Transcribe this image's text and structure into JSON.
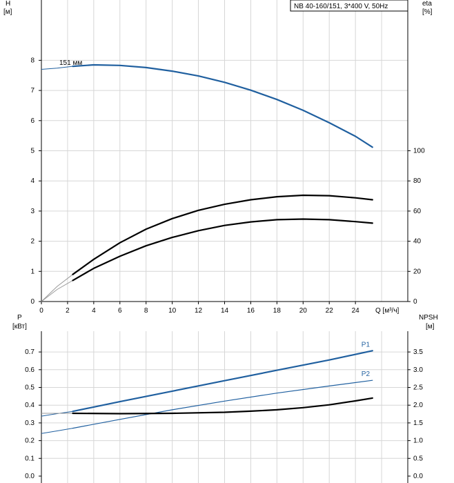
{
  "chart_data": [
    {
      "type": "line",
      "title": "NB 40-160/151, 3*400 V, 50Hz",
      "xlabel": "Q [м³/ч]",
      "x_ticks": [
        "0",
        "2",
        "4",
        "6",
        "8",
        "10",
        "12",
        "14",
        "16",
        "18",
        "20",
        "22",
        "24"
      ],
      "xlim": [
        0,
        28
      ],
      "left_axis": {
        "label_line1": "H",
        "label_line2": "[м]",
        "ylim": [
          0,
          10
        ],
        "ticks": [
          "0",
          "1",
          "2",
          "3",
          "4",
          "5",
          "6",
          "7",
          "8"
        ]
      },
      "right_axis": {
        "label_line1": "eta",
        "label_line2": "[%]",
        "ylim": [
          0,
          200
        ],
        "ticks": [
          "0",
          "20",
          "40",
          "60",
          "80",
          "100"
        ]
      },
      "annotation": "151 мм",
      "grid": true,
      "series": [
        {
          "axis": "left",
          "color": "#1f5f9f",
          "x": [
            2.4,
            4,
            6,
            8,
            10,
            12,
            14,
            16,
            18,
            20,
            22,
            24,
            25.3
          ],
          "y": [
            7.8,
            7.85,
            7.83,
            7.76,
            7.64,
            7.48,
            7.27,
            7.01,
            6.7,
            6.34,
            5.93,
            5.48,
            5.12
          ],
          "ext_x": [
            0,
            1.2,
            2.4
          ],
          "ext_y": [
            7.7,
            7.74,
            7.8
          ]
        },
        {
          "axis": "right",
          "color": "#000000",
          "x": [
            2.4,
            4,
            6,
            8,
            10,
            12,
            14,
            16,
            18,
            20,
            22,
            24,
            25.3
          ],
          "y": [
            18,
            28,
            39,
            48,
            55,
            60.5,
            64.5,
            67.5,
            69.5,
            70.5,
            70.2,
            68.8,
            67.5
          ],
          "ext_x": [
            0,
            1.2,
            2.4
          ],
          "ext_y": [
            0,
            10,
            18
          ]
        },
        {
          "axis": "right",
          "color": "#000000",
          "x": [
            2.4,
            4,
            6,
            8,
            10,
            12,
            14,
            16,
            18,
            20,
            22,
            24,
            25.3
          ],
          "y": [
            14,
            22,
            30,
            37,
            42.5,
            47,
            50.5,
            52.8,
            54.3,
            54.7,
            54.3,
            53,
            52
          ],
          "ext_x": [
            0,
            1.2,
            2.4
          ],
          "ext_y": [
            0,
            8,
            14
          ]
        }
      ]
    },
    {
      "type": "line",
      "xlim": [
        0,
        28
      ],
      "left_axis": {
        "label_line1": "P",
        "label_line2": "[кВт]",
        "ylim": [
          0,
          0.8
        ],
        "ticks": [
          "0.0",
          "0.1",
          "0.2",
          "0.3",
          "0.4",
          "0.5",
          "0.6",
          "0.7"
        ]
      },
      "right_axis": {
        "label_line1": "NPSH",
        "label_line2": "[м]",
        "ylim": [
          0,
          4
        ],
        "ticks": [
          "0.0",
          "0.5",
          "1.0",
          "1.5",
          "2.0",
          "2.5",
          "3.0",
          "3.5"
        ]
      },
      "grid": true,
      "series": [
        {
          "name": "P1",
          "axis": "left",
          "color": "#1f5f9f",
          "x": [
            2.4,
            6,
            10,
            14,
            18,
            22,
            25.3
          ],
          "y": [
            0.365,
            0.42,
            0.479,
            0.538,
            0.597,
            0.655,
            0.707
          ],
          "ext_x": [
            0,
            1.2,
            2.4
          ],
          "ext_y": [
            0.338,
            0.352,
            0.365
          ]
        },
        {
          "name": "P2",
          "axis": "left",
          "color": "#1f5f9f",
          "x": [
            2.4,
            6,
            10,
            14,
            18,
            22,
            25.3
          ],
          "y": [
            0.27,
            0.32,
            0.374,
            0.423,
            0.468,
            0.508,
            0.54
          ],
          "ext_x": [
            0,
            1.2,
            2.4
          ],
          "ext_y": [
            0.24,
            0.255,
            0.27
          ]
        },
        {
          "axis": "right",
          "color": "#000000",
          "x": [
            2.4,
            6,
            10,
            14,
            16,
            18,
            20,
            22,
            24,
            25.3
          ],
          "y": [
            1.77,
            1.76,
            1.77,
            1.8,
            1.83,
            1.87,
            1.93,
            2.01,
            2.12,
            2.2
          ],
          "ext_x": [
            0,
            1.2,
            2.4
          ],
          "ext_y": [
            1.77,
            1.77,
            1.77
          ]
        }
      ]
    }
  ]
}
